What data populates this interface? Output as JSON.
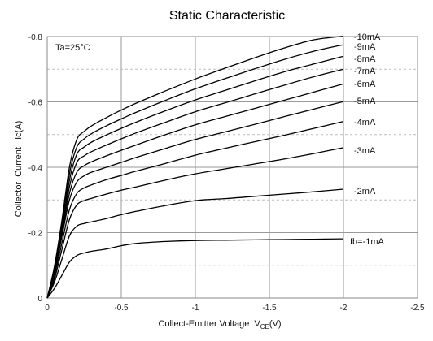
{
  "chart_data": {
    "type": "line",
    "title": "Static Characteristic",
    "xlabel": "Collect-Emitter Voltage",
    "xlabel_symbol": "V",
    "xlabel_subscript": "CE",
    "xlabel_unit": "(V)",
    "ylabel": "Collector  Current   Ic(A)",
    "annotation": "Ta=25°C",
    "xlim": [
      0,
      -2.5
    ],
    "ylim": [
      0,
      -0.8
    ],
    "x_ticks": [
      "0",
      "-0.5",
      "-1",
      "-1.5",
      "-2",
      "-2.5"
    ],
    "y_ticks": [
      "0",
      "-0.2",
      "-0.4",
      "-0.6",
      "-0.8"
    ],
    "grid": true,
    "x": [
      0,
      -0.05,
      -0.1,
      -0.15,
      -0.2,
      -0.25,
      -0.3,
      -0.4,
      -0.5,
      -0.6,
      -0.8,
      -1.0,
      -1.2,
      -1.4,
      -1.6,
      -1.8,
      -2.0
    ],
    "series": [
      {
        "name": "Ib=-1mA",
        "values": [
          0,
          -0.03,
          -0.07,
          -0.11,
          -0.13,
          -0.138,
          -0.143,
          -0.15,
          -0.16,
          -0.167,
          -0.173,
          -0.176,
          -0.177,
          -0.178,
          -0.179,
          -0.18,
          -0.181
        ]
      },
      {
        "name": "-2mA",
        "values": [
          0,
          -0.05,
          -0.12,
          -0.19,
          -0.22,
          -0.228,
          -0.233,
          -0.243,
          -0.255,
          -0.265,
          -0.283,
          -0.298,
          -0.304,
          -0.311,
          -0.318,
          -0.325,
          -0.333
        ]
      },
      {
        "name": "-3mA",
        "values": [
          0,
          -0.06,
          -0.15,
          -0.24,
          -0.285,
          -0.298,
          -0.305,
          -0.318,
          -0.33,
          -0.34,
          -0.361,
          -0.38,
          -0.395,
          -0.41,
          -0.425,
          -0.442,
          -0.46
        ]
      },
      {
        "name": "-4mA",
        "values": [
          0,
          -0.07,
          -0.17,
          -0.27,
          -0.32,
          -0.337,
          -0.346,
          -0.362,
          -0.375,
          -0.388,
          -0.412,
          -0.437,
          -0.458,
          -0.478,
          -0.498,
          -0.519,
          -0.54
        ]
      },
      {
        "name": "-5mA",
        "values": [
          0,
          -0.08,
          -0.19,
          -0.3,
          -0.355,
          -0.374,
          -0.385,
          -0.4,
          -0.415,
          -0.43,
          -0.458,
          -0.485,
          -0.508,
          -0.531,
          -0.555,
          -0.578,
          -0.601
        ]
      },
      {
        "name": "-6mA",
        "values": [
          0,
          -0.08,
          -0.2,
          -0.32,
          -0.385,
          -0.405,
          -0.417,
          -0.435,
          -0.452,
          -0.468,
          -0.5,
          -0.53,
          -0.555,
          -0.58,
          -0.605,
          -0.63,
          -0.655
        ]
      },
      {
        "name": "-7mA",
        "values": [
          0,
          -0.08,
          -0.21,
          -0.34,
          -0.415,
          -0.435,
          -0.448,
          -0.468,
          -0.487,
          -0.505,
          -0.538,
          -0.57,
          -0.597,
          -0.624,
          -0.651,
          -0.677,
          -0.7
        ]
      },
      {
        "name": "-8mA",
        "values": [
          0,
          -0.09,
          -0.22,
          -0.36,
          -0.44,
          -0.462,
          -0.477,
          -0.499,
          -0.519,
          -0.538,
          -0.573,
          -0.606,
          -0.635,
          -0.664,
          -0.692,
          -0.716,
          -0.74
        ]
      },
      {
        "name": "-9mA",
        "values": [
          0,
          -0.09,
          -0.23,
          -0.38,
          -0.462,
          -0.487,
          -0.503,
          -0.527,
          -0.548,
          -0.568,
          -0.605,
          -0.64,
          -0.671,
          -0.701,
          -0.73,
          -0.755,
          -0.775
        ]
      },
      {
        "name": "-10mA",
        "values": [
          0,
          -0.1,
          -0.24,
          -0.4,
          -0.485,
          -0.51,
          -0.527,
          -0.552,
          -0.575,
          -0.596,
          -0.634,
          -0.67,
          -0.703,
          -0.735,
          -0.765,
          -0.79,
          -0.801
        ]
      }
    ]
  }
}
